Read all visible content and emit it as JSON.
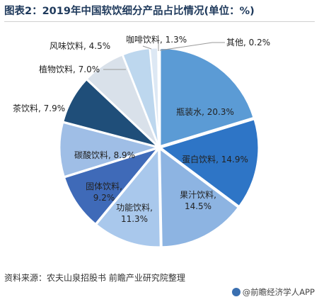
{
  "title": "图表2：2019年中国软饮细分产品占比情况(单位：%)",
  "source": "资料来源：农夫山泉招股书 前瞻产业研究院整理",
  "brand": "@前瞻经济学人APP",
  "chart_data": {
    "type": "pie",
    "title": "图表2：2019年中国软饮细分产品占比情况(单位：%)",
    "slices": [
      {
        "label": "瓶装水",
        "value": 20.3,
        "text": "瓶装水, 20.3%",
        "color": "#5b9bd5"
      },
      {
        "label": "蛋白饮料",
        "value": 14.9,
        "text": "蛋白饮料, 14.9%",
        "color": "#2e75c6"
      },
      {
        "label": "果汁饮料",
        "value": 14.5,
        "text": "果汁饮料,\n14.5%",
        "color": "#8db4e2"
      },
      {
        "label": "功能饮料",
        "value": 11.3,
        "text": "功能饮料,\n11.3%",
        "color": "#a9c8ec"
      },
      {
        "label": "固体饮料",
        "value": 9.2,
        "text": "固体饮料,\n9.2%",
        "color": "#3f6ab8"
      },
      {
        "label": "碳酸饮料",
        "value": 8.9,
        "text": "碳酸饮料, 8.9%",
        "color": "#9fbee6"
      },
      {
        "label": "茶饮料",
        "value": 7.9,
        "text": "茶饮料, 7.9%",
        "color": "#1f4e79"
      },
      {
        "label": "植物饮料",
        "value": 7.0,
        "text": "植物饮料, 7.0%",
        "color": "#d9e1ea"
      },
      {
        "label": "风味饮料",
        "value": 4.5,
        "text": "风味饮料, 4.5%",
        "color": "#bdd7ee"
      },
      {
        "label": "咖啡饮料",
        "value": 1.3,
        "text": "咖啡饮料, 1.3%",
        "color": "#dde8f4"
      },
      {
        "label": "其他",
        "value": 0.2,
        "text": "其他, 0.2%",
        "color": "#c9d9ec"
      }
    ]
  }
}
